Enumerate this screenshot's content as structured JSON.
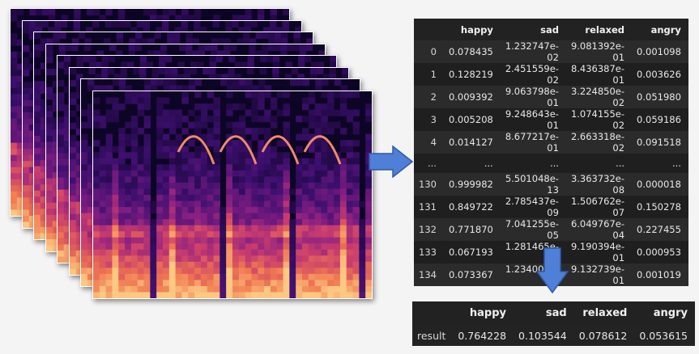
{
  "main_table": {
    "columns": [
      "",
      "happy",
      "sad",
      "relaxed",
      "angry"
    ],
    "rows": [
      [
        "0",
        "0.078435",
        "1.232747e-02",
        "9.081392e-01",
        "0.001098"
      ],
      [
        "1",
        "0.128219",
        "2.451559e-02",
        "8.436387e-01",
        "0.003626"
      ],
      [
        "2",
        "0.009392",
        "9.063798e-01",
        "3.224850e-02",
        "0.051980"
      ],
      [
        "3",
        "0.005208",
        "9.248643e-01",
        "1.074155e-02",
        "0.059186"
      ],
      [
        "4",
        "0.014127",
        "8.677217e-01",
        "2.663318e-02",
        "0.091518"
      ],
      [
        "...",
        "...",
        "...",
        "...",
        "..."
      ],
      [
        "130",
        "0.999982",
        "5.501048e-13",
        "3.363732e-08",
        "0.000018"
      ],
      [
        "131",
        "0.849722",
        "2.785437e-09",
        "1.506762e-07",
        "0.150278"
      ],
      [
        "132",
        "0.771870",
        "7.041255e-05",
        "6.049767e-04",
        "0.227455"
      ],
      [
        "133",
        "0.067193",
        "1.281465e-02",
        "9.190394e-01",
        "0.000953"
      ],
      [
        "134",
        "0.073367",
        "1.234008e-02",
        "9.132739e-01",
        "0.001019"
      ]
    ]
  },
  "result_table": {
    "columns": [
      "",
      "happy",
      "sad",
      "relaxed",
      "angry"
    ],
    "rows": [
      [
        "result",
        "0.764228",
        "0.103544",
        "0.078612",
        "0.053615"
      ]
    ]
  },
  "colors": {
    "arrow_fill": "#4f7fd6",
    "arrow_stroke": "#2f5aa8",
    "table_bg": "#222222",
    "spectrogram_bg": "#0d0525"
  },
  "icons": {
    "right_arrow": "right-arrow-icon",
    "down_arrow": "down-arrow-icon"
  }
}
